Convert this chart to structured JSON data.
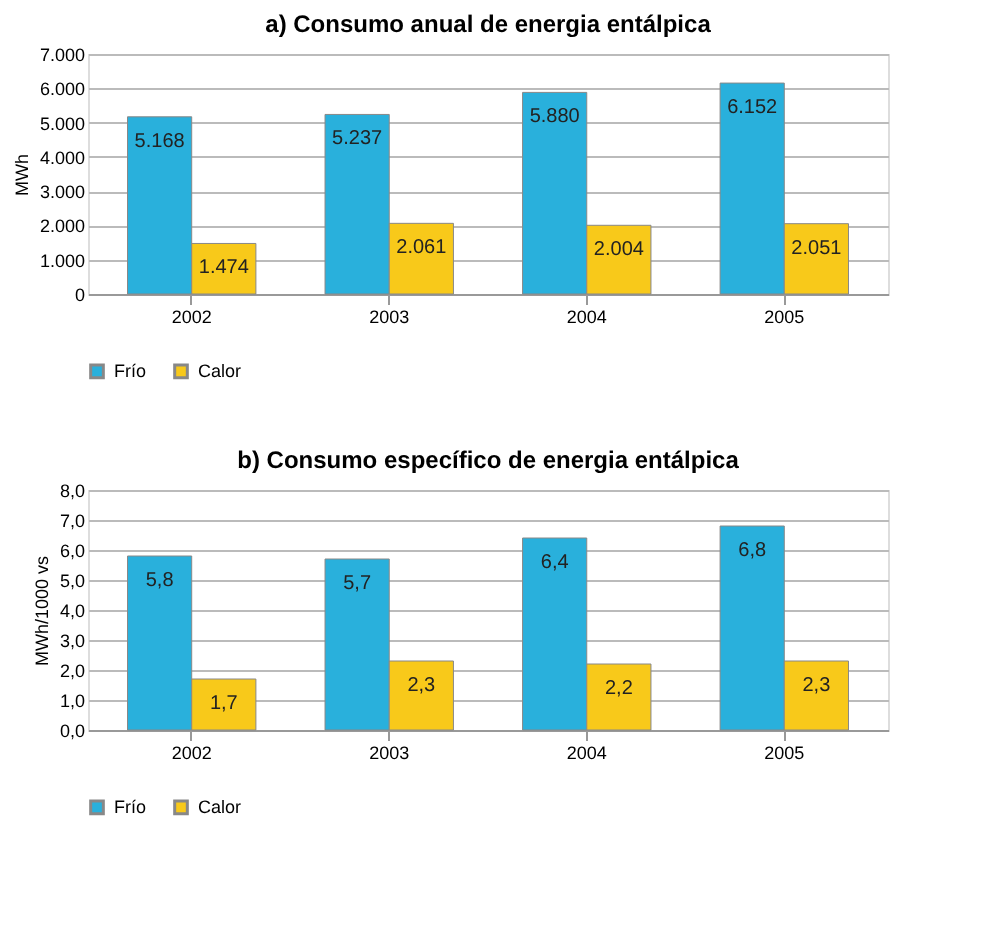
{
  "chart_data": [
    {
      "type": "bar",
      "title": "a) Consumo anual de energia entálpica",
      "ylabel": "MWh",
      "categories": [
        "2002",
        "2003",
        "2004",
        "2005"
      ],
      "series": [
        {
          "name": "Frío",
          "color": "#29b0dc",
          "values": [
            5168,
            5237,
            5880,
            6152
          ],
          "value_labels": [
            "5.168",
            "5.237",
            "5.880",
            "6.152"
          ]
        },
        {
          "name": "Calor",
          "color": "#f8c91a",
          "values": [
            1474,
            2061,
            2004,
            2051
          ],
          "value_labels": [
            "1.474",
            "2.061",
            "2.004",
            "2.051"
          ]
        }
      ],
      "ylim": [
        0,
        7000
      ],
      "yticks": [
        {
          "value": 0,
          "label": "0"
        },
        {
          "value": 1000,
          "label": "1.000"
        },
        {
          "value": 2000,
          "label": "2.000"
        },
        {
          "value": 3000,
          "label": "3.000"
        },
        {
          "value": 4000,
          "label": "4.000"
        },
        {
          "value": 5000,
          "label": "5.000"
        },
        {
          "value": 6000,
          "label": "6.000"
        },
        {
          "value": 7000,
          "label": "7.000"
        }
      ],
      "grid": "y",
      "legend": "bottom"
    },
    {
      "type": "bar",
      "title": "b) Consumo específico de energia entálpica",
      "ylabel": "MWh/1000 vs",
      "categories": [
        "2002",
        "2003",
        "2004",
        "2005"
      ],
      "series": [
        {
          "name": "Frío",
          "color": "#29b0dc",
          "values": [
            5.8,
            5.7,
            6.4,
            6.8
          ],
          "value_labels": [
            "5,8",
            "5,7",
            "6,4",
            "6,8"
          ]
        },
        {
          "name": "Calor",
          "color": "#f8c91a",
          "values": [
            1.7,
            2.3,
            2.2,
            2.3
          ],
          "value_labels": [
            "1,7",
            "2,3",
            "2,2",
            "2,3"
          ]
        }
      ],
      "ylim": [
        0,
        8
      ],
      "yticks": [
        {
          "value": 0,
          "label": "0,0"
        },
        {
          "value": 1,
          "label": "1,0"
        },
        {
          "value": 2,
          "label": "2,0"
        },
        {
          "value": 3,
          "label": "3,0"
        },
        {
          "value": 4,
          "label": "4,0"
        },
        {
          "value": 5,
          "label": "5,0"
        },
        {
          "value": 6,
          "label": "6,0"
        },
        {
          "value": 7,
          "label": "7,0"
        },
        {
          "value": 8,
          "label": "8,0"
        }
      ],
      "grid": "y",
      "legend": "bottom"
    }
  ]
}
